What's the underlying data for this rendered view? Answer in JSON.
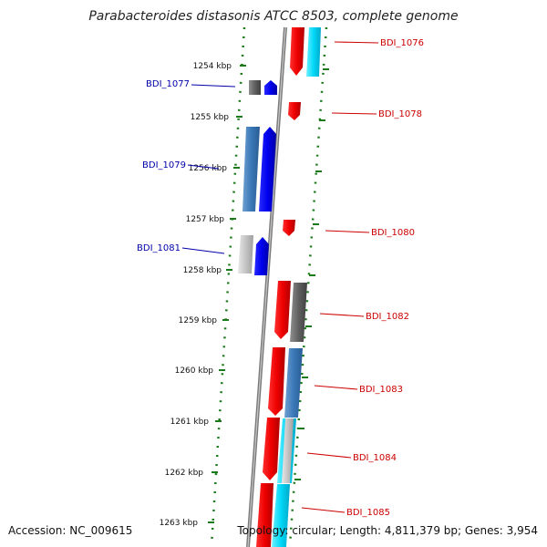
{
  "title": "Parabacteroides distasonis ATCC 8503, complete genome",
  "accession": "Accession: NC_009615",
  "topology": "Topology: circular; Length: 4,811,379 bp; Genes: 3,954",
  "colors": {
    "forward_cds": "#0000ee",
    "reverse_cds": "#ee0000",
    "label_forward": "#0000aa",
    "label_reverse": "#cc0000",
    "backbone": "#888888",
    "ticks": "#1a7a1a"
  },
  "ticks": [
    "1254 kbp",
    "1255 kbp",
    "1256 kbp",
    "1257 kbp",
    "1258 kbp",
    "1259 kbp",
    "1260 kbp",
    "1261 kbp",
    "1262 kbp",
    "1263 kbp"
  ],
  "genes_left": [
    {
      "name": "BDI_1077"
    },
    {
      "name": "BDI_1079"
    },
    {
      "name": "BDI_1081"
    }
  ],
  "genes_right": [
    {
      "name": "BDI_1076"
    },
    {
      "name": "BDI_1078"
    },
    {
      "name": "BDI_1080"
    },
    {
      "name": "BDI_1082"
    },
    {
      "name": "BDI_1083"
    },
    {
      "name": "BDI_1084"
    },
    {
      "name": "BDI_1085"
    }
  ]
}
